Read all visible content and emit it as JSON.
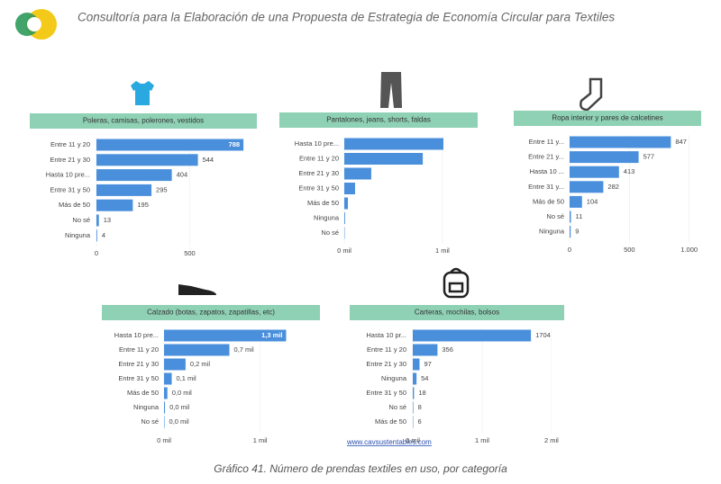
{
  "header": {
    "title": "Consultoría para la Elaboración de una Propuesta de Estrategia de Economía Circular para Textiles"
  },
  "link": "www.cavsustentables.com",
  "caption": "Gráfico 41. Número de prendas textiles en uso, por categoría",
  "chart_data": [
    {
      "type": "hbar",
      "title": "Poleras, camisas, polerones, vestidos",
      "color": "#4a8fdc",
      "categories": [
        "Entre 11 y 20",
        "Entre 21 y 30",
        "Hasta 10 pre...",
        "Entre 31 y 50",
        "Más de 50",
        "No sé",
        "Ninguna"
      ],
      "values": [
        788,
        544,
        404,
        295,
        195,
        13,
        4
      ],
      "value_labels": [
        "788",
        "544",
        "404",
        "295",
        "195",
        "13",
        "4"
      ],
      "xlim": [
        0,
        860
      ],
      "xticks": [
        0,
        500
      ]
    },
    {
      "type": "hbar",
      "title": "Pantalones, jeans, shorts, faldas",
      "color": "#4a8fdc",
      "categories": [
        "Hasta 10 pre...",
        "Entre 11 y 20",
        "Entre 21 y 30",
        "Entre 31 y 50",
        "Más de 50",
        "Ninguna",
        "No sé"
      ],
      "values": [
        1010,
        800,
        275,
        110,
        37,
        8,
        4
      ],
      "xlim": [
        0,
        1350
      ],
      "xticks": [
        {
          "value": 0,
          "label": "0 mil"
        },
        {
          "value": 1000,
          "label": "1 mil"
        }
      ]
    },
    {
      "type": "hbar",
      "title": "Ropa interior y pares de calcetines",
      "color": "#4a8fdc",
      "categories": [
        "Entre 11 y...",
        "Entre 21 y...",
        "Hasta 10 ...",
        "Entre 31 y...",
        "Más de 50",
        "No sé",
        "Ninguna"
      ],
      "values": [
        847,
        577,
        413,
        282,
        104,
        11,
        9
      ],
      "value_labels": [
        "847",
        "577",
        "413",
        "282",
        "104",
        "11",
        "9"
      ],
      "xlim": [
        0,
        1040
      ],
      "xticks": [
        0,
        500,
        {
          "value": 1000,
          "label": "1.000"
        }
      ]
    },
    {
      "type": "hbar",
      "title": "Calzado (botas, zapatos, zapatillas, etc)",
      "color": "#4a8fdc",
      "categories": [
        "Hasta 10 pre...",
        "Entre 11 y 20",
        "Entre 21 y 30",
        "Entre 31 y 50",
        "Más de 50",
        "Ninguna",
        "No sé"
      ],
      "values": [
        1270,
        680,
        224,
        80,
        35,
        10,
        5
      ],
      "value_labels": [
        "1,3 mil",
        "0,7 mil",
        "0,2 mil",
        "0,1 mil",
        "0,0 mil",
        "0,0 mil",
        "0,0 mil"
      ],
      "xlim": [
        0,
        1500
      ],
      "xticks": [
        {
          "value": 0,
          "label": "0 mil"
        },
        {
          "value": 1000,
          "label": "1 mil"
        }
      ]
    },
    {
      "type": "hbar",
      "title": "Carteras, mochilas, bolsos",
      "color": "#4a8fdc",
      "categories": [
        "Hasta 10 pr...",
        "Entre 11 y 20",
        "Entre 21 y 30",
        "Ninguna",
        "Entre 31 y 50",
        "No sé",
        "Más de 50"
      ],
      "values": [
        1704,
        356,
        97,
        54,
        18,
        8,
        6
      ],
      "value_labels": [
        "1704",
        "356",
        "97",
        "54",
        "18",
        "8",
        "6"
      ],
      "xlim": [
        0,
        2170
      ],
      "xticks": [
        {
          "value": 0,
          "label": "0 mil"
        },
        {
          "value": 1000,
          "label": "1 mil"
        },
        {
          "value": 2000,
          "label": "2 mil"
        }
      ]
    }
  ]
}
